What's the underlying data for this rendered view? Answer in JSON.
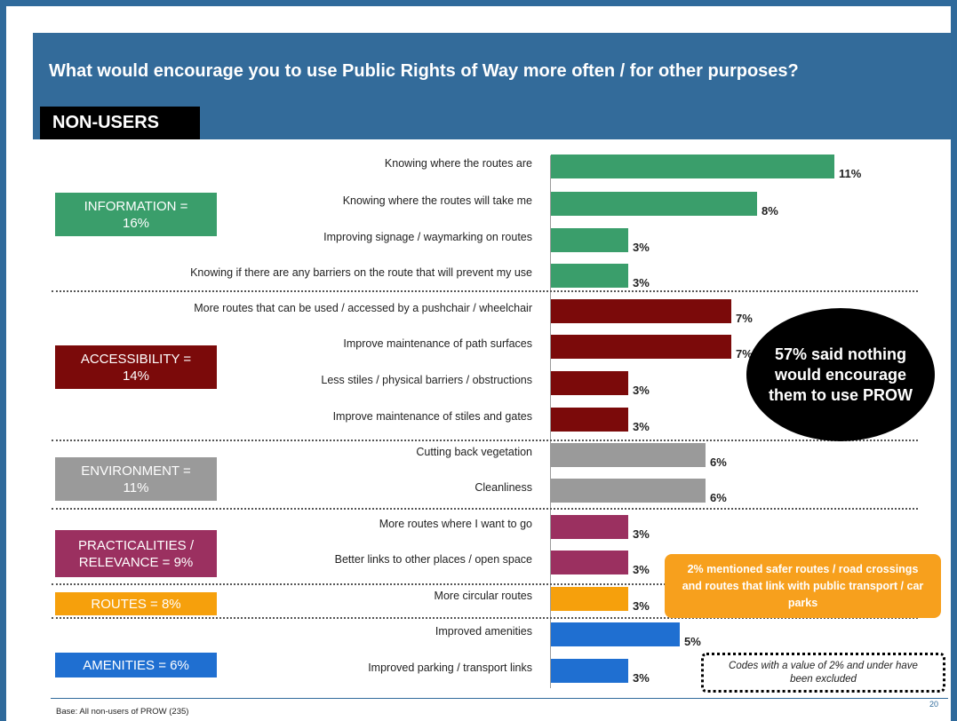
{
  "title": "What would encourage you to use Public Rights of Way more often / for other purposes?",
  "subtitle": "NON-USERS",
  "colors": {
    "band": "#336b9a",
    "information": "#3a9e6b",
    "accessibility": "#7b0a0a",
    "environment": "#9a9a9a",
    "practicalities": "#9b3060",
    "routes": "#f6a00c",
    "amenities": "#1f6fd1"
  },
  "categories": [
    {
      "key": "information",
      "lines": [
        "INFORMATION =",
        "16%"
      ]
    },
    {
      "key": "accessibility",
      "lines": [
        "ACCESSIBILITY =",
        "14%"
      ]
    },
    {
      "key": "environment",
      "lines": [
        "ENVIRONMENT =",
        "11%"
      ]
    },
    {
      "key": "practicalities",
      "lines": [
        "PRACTICALITIES /",
        "RELEVANCE = 9%"
      ]
    },
    {
      "key": "routes",
      "lines": [
        "ROUTES = 8%"
      ]
    },
    {
      "key": "amenities",
      "lines": [
        "AMENITIES = 6%"
      ]
    }
  ],
  "chart_data": {
    "type": "bar",
    "orientation": "horizontal",
    "unit": "%",
    "categories": [
      "Knowing where the routes are",
      "Knowing where the routes will take me",
      "Improving signage / waymarking on routes",
      "Knowing if there are any barriers on the route that will prevent my use",
      "More routes that can be used / accessed by a pushchair / wheelchair",
      "Improve maintenance of path surfaces",
      "Less stiles / physical barriers / obstructions",
      "Improve maintenance of stiles and gates",
      "Cutting back vegetation",
      "Cleanliness",
      "More routes where I want to go",
      "Better links to other places / open space",
      "More circular routes",
      "Improved amenities",
      "Improved parking / transport links"
    ],
    "values": [
      11,
      8,
      3,
      3,
      7,
      7,
      3,
      3,
      6,
      6,
      3,
      3,
      3,
      5,
      3
    ],
    "value_labels": [
      "11%",
      "8%",
      "3%",
      "3%",
      "7%",
      "7%",
      "3%",
      "3%",
      "6%",
      "6%",
      "3%",
      "3%",
      "3%",
      "5%",
      "3%"
    ],
    "groups": [
      "information",
      "information",
      "information",
      "information",
      "accessibility",
      "accessibility",
      "accessibility",
      "accessibility",
      "environment",
      "environment",
      "practicalities",
      "practicalities",
      "routes",
      "amenities",
      "amenities"
    ],
    "xlim": [
      0,
      12
    ],
    "grid": false,
    "legend": "none"
  },
  "callouts": {
    "oval": "57% said nothing would encourage them to use PROW",
    "orange": "2% mentioned safer routes / road crossings and routes that link with public transport / car parks",
    "note": "Codes with a value of 2% and under have been excluded"
  },
  "footer": {
    "base": "Base: All non-users of PROW (235)",
    "page": "20"
  }
}
